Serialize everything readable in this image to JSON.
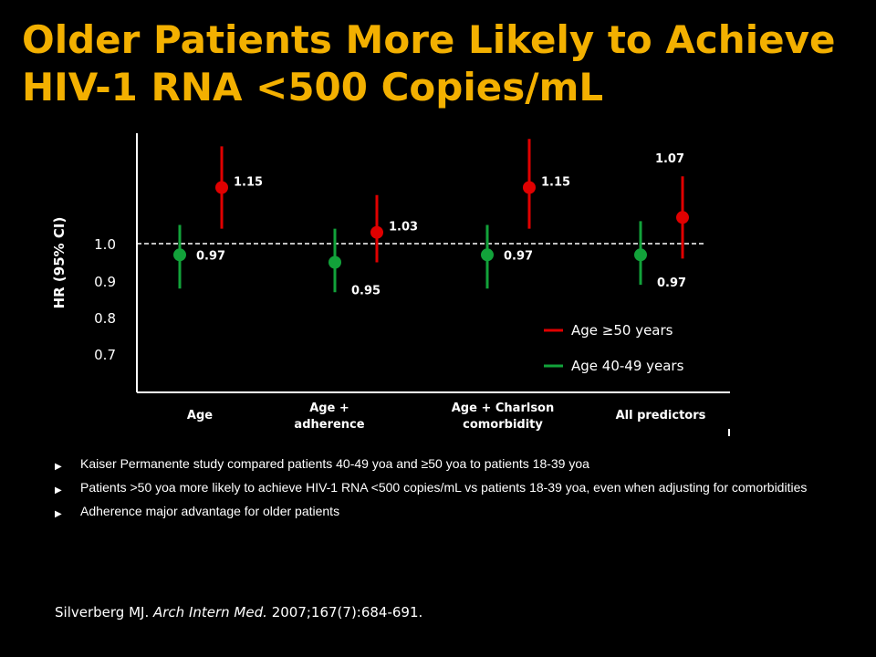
{
  "title_lines": [
    "Older Patients More Likely to Achieve",
    "HIV-1 RNA <500 Copies/mL"
  ],
  "colors": {
    "title": "#f3b000",
    "series_older": "#e00000",
    "series_younger": "#12a23a",
    "text": "#ffffff",
    "background": "#000000"
  },
  "chart_data": {
    "type": "scatter",
    "subtype": "forest-plot-with-error-bars",
    "categories": [
      "Age",
      "Age + adherence",
      "Age + Charlson comorbidity",
      "All predictors"
    ],
    "ylabel": "HR (95% CI)",
    "yticks": [
      "1.0",
      "0.9",
      "0.8",
      "0.7"
    ],
    "reference_line": 1.0,
    "ylim": [
      0.6,
      1.3
    ],
    "series": [
      {
        "name": "Age 40-49 years",
        "color": "#12a23a",
        "values": [
          0.97,
          0.95,
          0.97,
          0.97
        ],
        "labels": [
          "0.97",
          "0.95",
          "0.97",
          "0.97"
        ],
        "ci_low": [
          0.88,
          0.87,
          0.88,
          0.89
        ],
        "ci_high": [
          1.05,
          1.04,
          1.05,
          1.06
        ]
      },
      {
        "name": "Age ≥50 years",
        "color": "#e00000",
        "values": [
          1.15,
          1.03,
          1.15,
          1.07
        ],
        "labels": [
          "1.15",
          "1.03",
          "1.15",
          "1.07"
        ],
        "ci_low": [
          1.04,
          0.95,
          1.04,
          0.96
        ],
        "ci_high": [
          1.26,
          1.13,
          1.28,
          1.18
        ]
      }
    ],
    "legend_position": "bottom-right",
    "legend_order": [
      "Age ≥50 years",
      "Age 40-49 years"
    ],
    "grid": false
  },
  "bullets": [
    "Kaiser Permanente study compared patients 40-49 yoa and ≥50 yoa to patients 18-39 yoa",
    "Patients >50 yoa more likely to achieve HIV-1 RNA <500 copies/mL vs patients 18-39 yoa, even when adjusting for comorbidities",
    "Adherence major advantage for older patients"
  ],
  "citation": {
    "author": "Silverberg MJ.",
    "journal": "Arch Intern Med.",
    "details": "2007;167(7):684-691."
  }
}
